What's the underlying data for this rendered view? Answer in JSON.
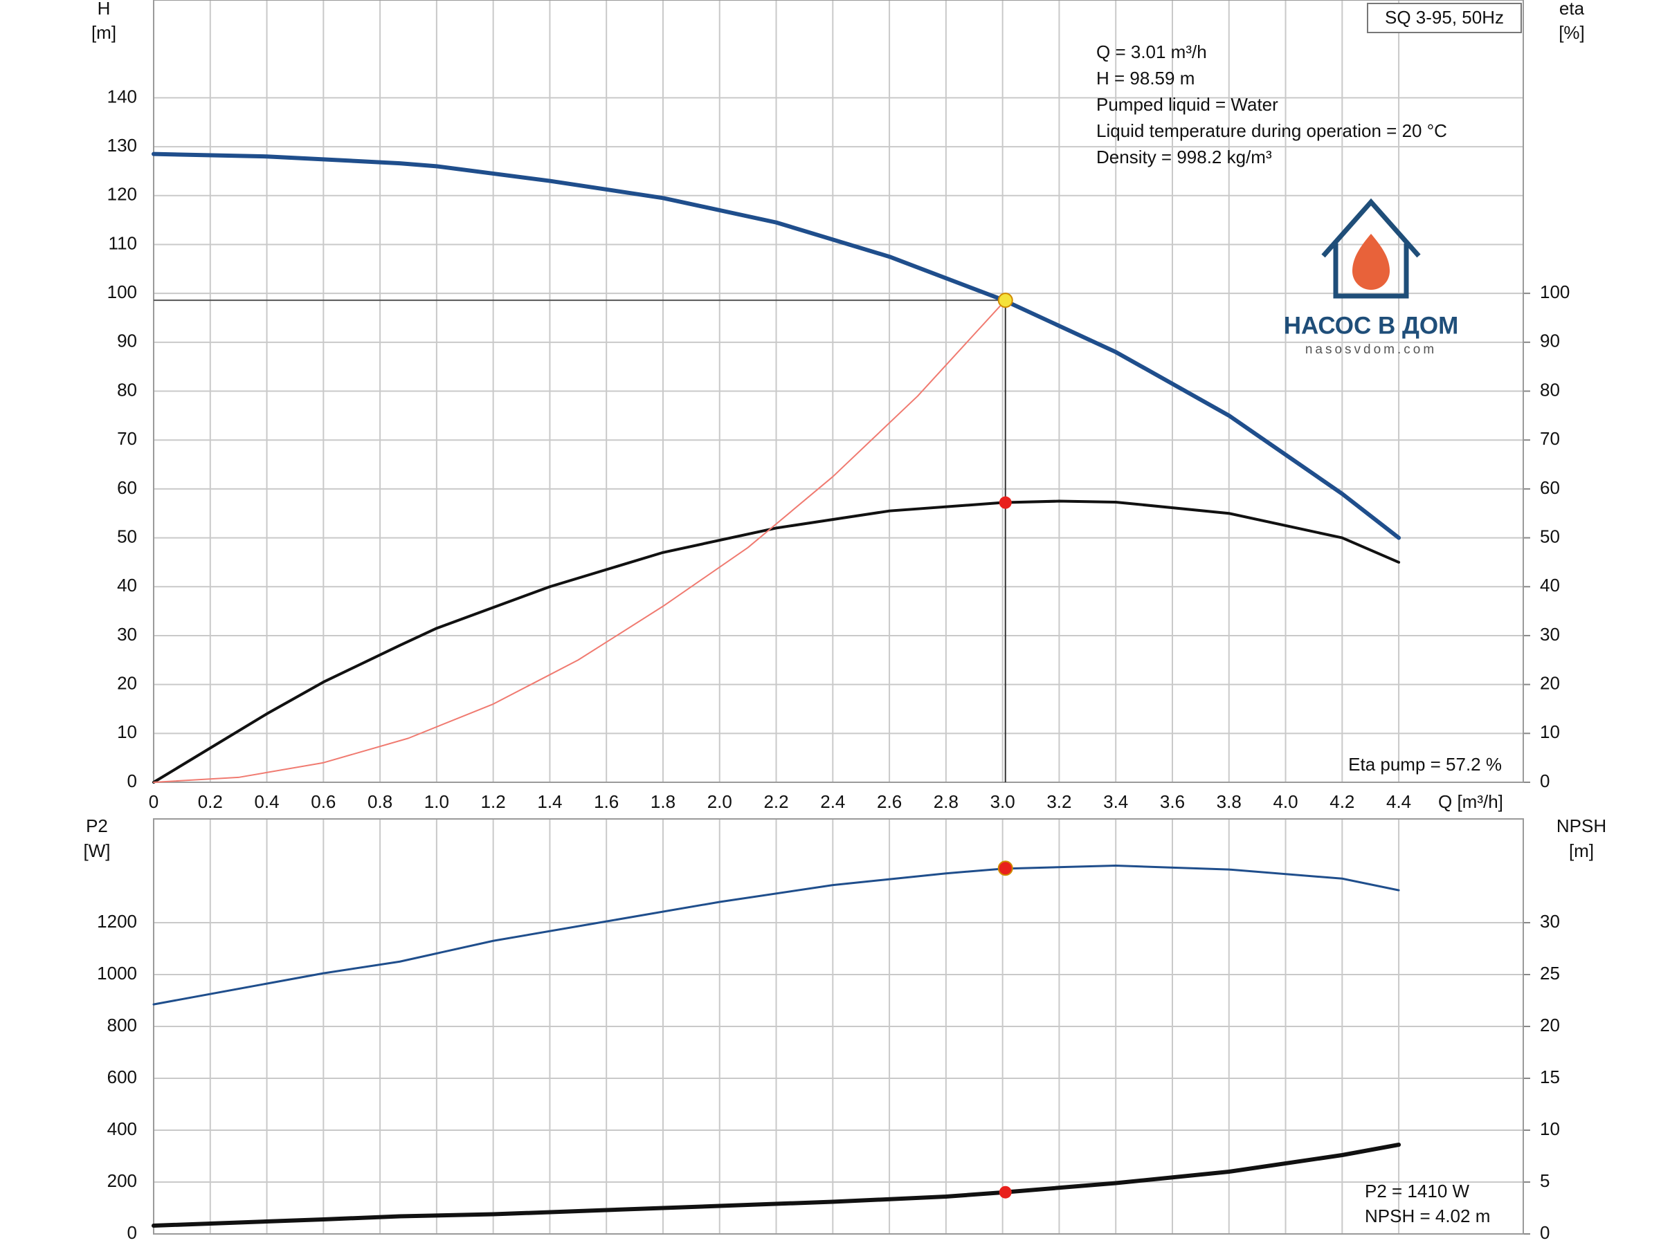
{
  "chart_data": [
    {
      "type": "line",
      "title": "SQ 3-95, 50Hz",
      "info": [
        "Q = 3.01 m³/h",
        "H = 98.59 m",
        "Pumped liquid = Water",
        "Liquid temperature during operation = 20 °C",
        "Density = 998.2 kg/m³"
      ],
      "notes": [
        "Eta pump = 57.2 %"
      ],
      "xlabel": "Q [m³/h]",
      "ylabel": [
        "H",
        "[m]"
      ],
      "y2label": [
        "eta",
        "[%]"
      ],
      "xlim": [
        0,
        4.84
      ],
      "xticks": [
        0,
        0.2,
        0.4,
        0.6,
        0.8,
        {
          "value": 1,
          "label": "1.0"
        },
        1.2,
        1.4,
        1.6,
        1.8,
        {
          "value": 2,
          "label": "2.0"
        },
        2.2,
        2.4,
        2.6,
        2.8,
        {
          "value": 3,
          "label": "3.0"
        },
        3.2,
        3.4,
        3.6,
        3.8,
        {
          "value": 4,
          "label": "4.0"
        },
        4.2,
        4.4
      ],
      "ylim": [
        0,
        160
      ],
      "yticks": [
        0,
        10,
        20,
        30,
        40,
        50,
        60,
        70,
        80,
        90,
        100,
        110,
        120,
        130,
        140
      ],
      "y2lim": [
        0,
        160
      ],
      "y2ticks": [
        0,
        10,
        20,
        30,
        40,
        50,
        60,
        70,
        80,
        90,
        100
      ],
      "grid": true,
      "drop_lines": true,
      "series": [
        {
          "color": "#1f4e8c",
          "width": 6,
          "x": [
            0,
            0.4,
            0.87,
            1.0,
            1.4,
            1.8,
            2.2,
            2.6,
            3.0,
            3.4,
            3.8,
            4.2,
            4.4
          ],
          "values": [
            128.5,
            128,
            126.6,
            126,
            123,
            119.5,
            114.5,
            107.5,
            98.7,
            88,
            75,
            59,
            50
          ]
        },
        {
          "color": "#111111",
          "width": 4,
          "axis": "y2",
          "x": [
            0,
            0.2,
            0.4,
            0.6,
            0.87,
            1.0,
            1.4,
            1.8,
            2.2,
            2.6,
            3.0,
            3.2,
            3.4,
            3.8,
            4.2,
            4.4
          ],
          "values": [
            0,
            7,
            14,
            20.5,
            28,
            31.5,
            40,
            47,
            52,
            55.5,
            57.2,
            57.5,
            57.3,
            55,
            50,
            45
          ]
        },
        {
          "color": "#f07a70",
          "width": 2,
          "x": [
            0,
            0.3,
            0.6,
            0.9,
            1.2,
            1.5,
            1.8,
            2.1,
            2.4,
            2.7,
            3.01
          ],
          "values": [
            0,
            1,
            4,
            9,
            16,
            25,
            36,
            48,
            62.5,
            79,
            98.6
          ]
        }
      ],
      "duty_point": {
        "x": 3.01,
        "y": 98.59,
        "y2": 57.2,
        "y_color": "#f5e23a",
        "y2_color": "#e8201c"
      }
    },
    {
      "type": "line",
      "notes": [
        "P2 = 1410 W",
        "NPSH = 4.02 m"
      ],
      "ylabel": [
        "P2",
        "[W]"
      ],
      "y2label": [
        "NPSH",
        "[m]"
      ],
      "xlim": [
        0,
        4.84
      ],
      "ylim": [
        0,
        1600
      ],
      "yticks": [
        0,
        200,
        400,
        600,
        800,
        1000,
        1200
      ],
      "y2lim": [
        0,
        40
      ],
      "y2ticks": [
        0,
        5,
        10,
        15,
        20,
        25,
        30
      ],
      "grid": true,
      "series": [
        {
          "color": "#1f4e8c",
          "width": 3,
          "x": [
            0,
            0.6,
            0.87,
            1.2,
            1.6,
            2.0,
            2.4,
            2.8,
            3.0,
            3.4,
            3.8,
            4.2,
            4.4
          ],
          "values": [
            885,
            1005,
            1050,
            1130,
            1205,
            1280,
            1345,
            1390,
            1408,
            1420,
            1405,
            1370,
            1325
          ]
        },
        {
          "color": "#111111",
          "width": 6,
          "axis": "y2",
          "x": [
            0,
            0.6,
            0.87,
            1.2,
            1.6,
            2.0,
            2.4,
            2.8,
            3.0,
            3.4,
            3.8,
            4.2,
            4.4
          ],
          "values": [
            0.8,
            1.4,
            1.7,
            1.9,
            2.3,
            2.7,
            3.1,
            3.6,
            4.0,
            4.9,
            6.0,
            7.6,
            8.6
          ]
        }
      ],
      "duty_point": {
        "x": 3.01,
        "y": 1410,
        "y2": 4.02,
        "y_color": "#e8201c",
        "y2_color": "#e8201c"
      }
    }
  ],
  "watermark": {
    "brand": "НАСОС В ДОМ",
    "site": "nasosvdom.com"
  }
}
